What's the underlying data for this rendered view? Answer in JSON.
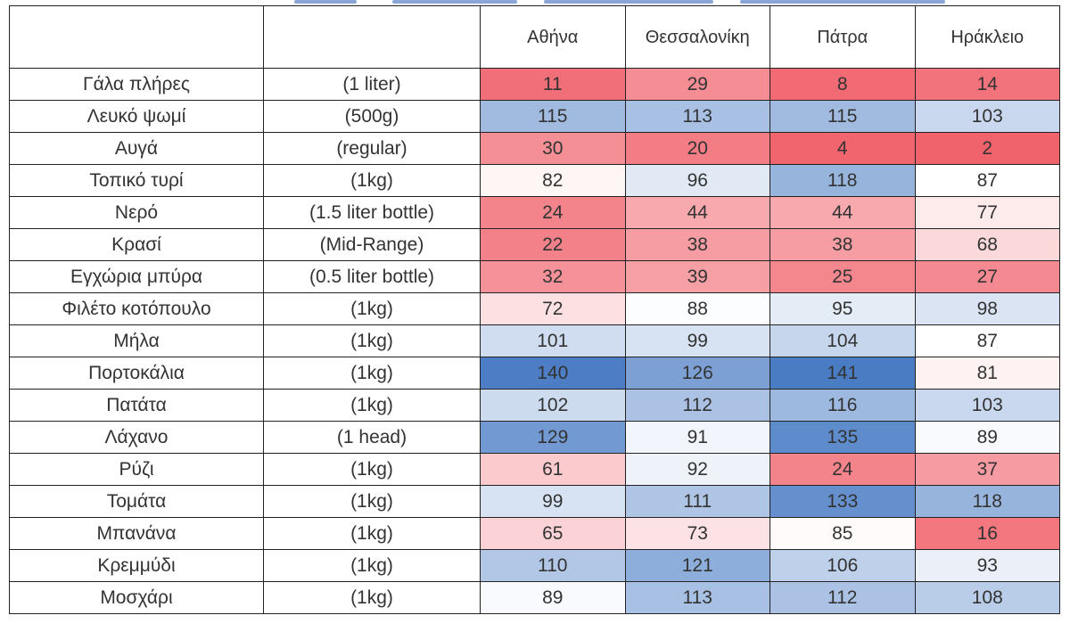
{
  "table": {
    "corner_label": "",
    "unit_header": "",
    "cities": [
      "Αθήνα",
      "Θεσσαλονίκη",
      "Πάτρα",
      "Ηράκλειο"
    ],
    "rows": [
      {
        "item": "Γάλα πλήρες",
        "unit": "(1 liter)",
        "values": [
          11,
          29,
          8,
          14
        ]
      },
      {
        "item": "Λευκό ψωμί",
        "unit": "(500g)",
        "values": [
          115,
          113,
          115,
          103
        ]
      },
      {
        "item": "Αυγά",
        "unit": "(regular)",
        "values": [
          30,
          20,
          4,
          2
        ]
      },
      {
        "item": "Τοπικό τυρί",
        "unit": "(1kg)",
        "values": [
          82,
          96,
          118,
          87
        ]
      },
      {
        "item": "Νερό",
        "unit": "(1.5 liter bottle)",
        "values": [
          24,
          44,
          44,
          77
        ]
      },
      {
        "item": "Κρασί",
        "unit": "(Mid-Range)",
        "values": [
          22,
          38,
          38,
          68
        ]
      },
      {
        "item": "Εγχώρια μπύρα",
        "unit": "(0.5 liter bottle)",
        "values": [
          32,
          39,
          25,
          27
        ]
      },
      {
        "item": "Φιλέτο κοτόπουλο",
        "unit": "(1kg)",
        "values": [
          72,
          88,
          95,
          98
        ]
      },
      {
        "item": "Μήλα",
        "unit": "(1kg)",
        "values": [
          101,
          99,
          104,
          87
        ]
      },
      {
        "item": "Πορτοκάλια",
        "unit": "(1kg)",
        "values": [
          140,
          126,
          141,
          81
        ]
      },
      {
        "item": "Πατάτα",
        "unit": "(1kg)",
        "values": [
          102,
          112,
          116,
          103
        ]
      },
      {
        "item": "Λάχανο",
        "unit": "(1 head)",
        "values": [
          129,
          91,
          135,
          89
        ]
      },
      {
        "item": "Ρύζι",
        "unit": "(1kg)",
        "values": [
          61,
          92,
          24,
          37
        ]
      },
      {
        "item": "Τομάτα",
        "unit": "(1kg)",
        "values": [
          99,
          111,
          133,
          118
        ]
      },
      {
        "item": "Μπανάνα",
        "unit": "(1kg)",
        "values": [
          65,
          73,
          85,
          16
        ]
      },
      {
        "item": "Κρεμμύδι",
        "unit": "(1kg)",
        "values": [
          110,
          121,
          106,
          93
        ]
      },
      {
        "item": "Μοσχάρι",
        "unit": "(1kg)",
        "values": [
          89,
          113,
          112,
          108
        ]
      }
    ]
  },
  "chart_data": {
    "type": "heatmap",
    "x": [
      "Αθήνα",
      "Θεσσαλονίκη",
      "Πάτρα",
      "Ηράκλειο"
    ],
    "y": [
      "Γάλα πλήρες",
      "Λευκό ψωμί",
      "Αυγά",
      "Τοπικό τυρί",
      "Νερό",
      "Κρασί",
      "Εγχώρια μπύρα",
      "Φιλέτο κοτόπουλο",
      "Μήλα",
      "Πορτοκάλια",
      "Πατάτα",
      "Λάχανο",
      "Ρύζι",
      "Τομάτα",
      "Μπανάνα",
      "Κρεμμύδι",
      "Μοσχάρι"
    ],
    "values": [
      [
        11,
        29,
        8,
        14
      ],
      [
        115,
        113,
        115,
        103
      ],
      [
        30,
        20,
        4,
        2
      ],
      [
        82,
        96,
        118,
        87
      ],
      [
        24,
        44,
        44,
        77
      ],
      [
        22,
        38,
        38,
        68
      ],
      [
        32,
        39,
        25,
        27
      ],
      [
        72,
        88,
        95,
        98
      ],
      [
        101,
        99,
        104,
        87
      ],
      [
        140,
        126,
        141,
        81
      ],
      [
        102,
        112,
        116,
        103
      ],
      [
        129,
        91,
        135,
        89
      ],
      [
        61,
        92,
        24,
        37
      ],
      [
        99,
        111,
        133,
        118
      ],
      [
        65,
        73,
        85,
        16
      ],
      [
        110,
        121,
        106,
        93
      ],
      [
        89,
        113,
        112,
        108
      ]
    ],
    "color_scale": {
      "low": "#f0606a",
      "mid": "#ffffff",
      "high": "#4a7cc4",
      "mid_value": 87,
      "max_value": 141
    }
  }
}
